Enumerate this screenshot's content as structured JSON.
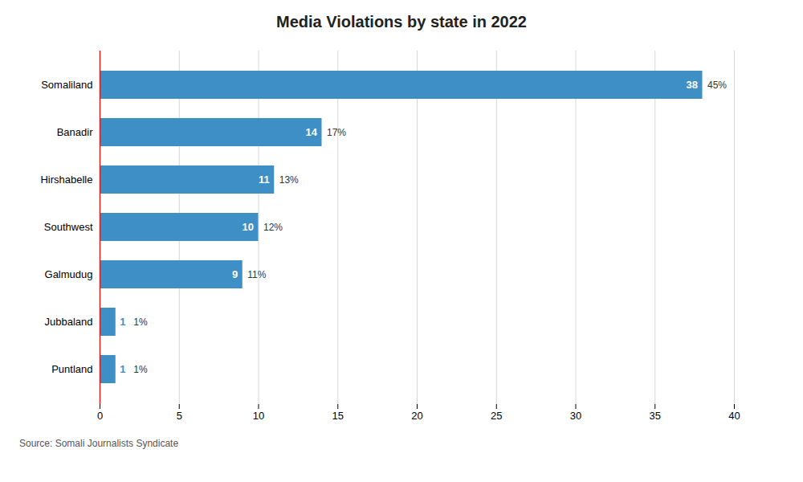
{
  "chart_data": {
    "type": "bar",
    "orientation": "horizontal",
    "title": "Media Violations by state in 2022",
    "source": "Source: Somali Journalists Syndicate",
    "categories": [
      "Somaliland",
      "Banadir",
      "Hirshabelle",
      "Southwest",
      "Galmudug",
      "Jubbaland",
      "Puntland"
    ],
    "values": [
      38,
      14,
      11,
      10,
      9,
      1,
      1
    ],
    "percentages": [
      "45%",
      "17%",
      "13%",
      "12%",
      "11%",
      "1%",
      "1%"
    ],
    "color": "#3d8fc5",
    "xlim": [
      0,
      40
    ],
    "xticks": [
      0,
      5,
      10,
      15,
      20,
      25,
      30,
      35,
      40
    ],
    "grid": true,
    "data_labels": true
  }
}
